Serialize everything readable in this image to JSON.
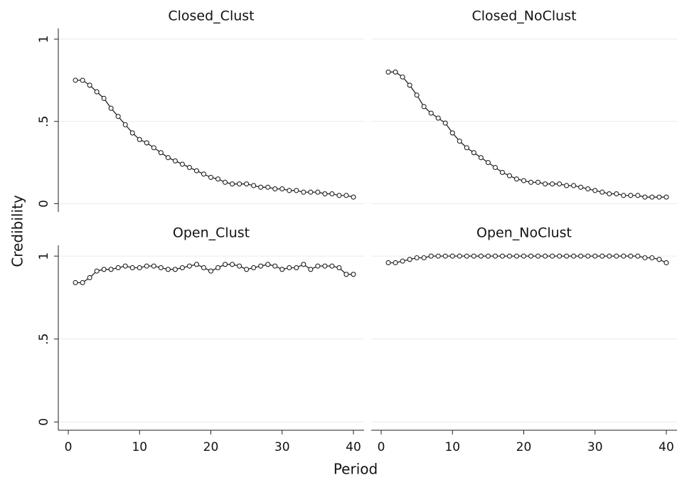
{
  "shared_axes": {
    "y_label": "Credibility",
    "x_label": "Period",
    "xlim": [
      -1.4,
      41.5
    ],
    "xticks": [
      0,
      10,
      20,
      30,
      40
    ],
    "ylim": [
      -0.05,
      1.065
    ],
    "yticks": [
      0,
      {
        "value": 0.5,
        "label": ".5"
      },
      1
    ]
  },
  "chart_data": [
    {
      "type": "line",
      "title": "Closed_Clust",
      "x": [
        1,
        2,
        3,
        4,
        5,
        6,
        7,
        8,
        9,
        10,
        11,
        12,
        13,
        14,
        15,
        16,
        17,
        18,
        19,
        20,
        21,
        22,
        23,
        24,
        25,
        26,
        27,
        28,
        29,
        30,
        31,
        32,
        33,
        34,
        35,
        36,
        37,
        38,
        39,
        40
      ],
      "values": [
        0.75,
        0.75,
        0.72,
        0.68,
        0.64,
        0.58,
        0.53,
        0.48,
        0.43,
        0.39,
        0.37,
        0.34,
        0.31,
        0.28,
        0.26,
        0.24,
        0.22,
        0.2,
        0.18,
        0.16,
        0.15,
        0.13,
        0.12,
        0.12,
        0.12,
        0.11,
        0.1,
        0.1,
        0.09,
        0.09,
        0.08,
        0.08,
        0.07,
        0.07,
        0.07,
        0.06,
        0.06,
        0.05,
        0.05,
        0.04
      ]
    },
    {
      "type": "line",
      "title": "Closed_NoClust",
      "x": [
        1,
        2,
        3,
        4,
        5,
        6,
        7,
        8,
        9,
        10,
        11,
        12,
        13,
        14,
        15,
        16,
        17,
        18,
        19,
        20,
        21,
        22,
        23,
        24,
        25,
        26,
        27,
        28,
        29,
        30,
        31,
        32,
        33,
        34,
        35,
        36,
        37,
        38,
        39,
        40
      ],
      "values": [
        0.8,
        0.8,
        0.77,
        0.72,
        0.66,
        0.59,
        0.55,
        0.52,
        0.49,
        0.43,
        0.38,
        0.34,
        0.31,
        0.28,
        0.25,
        0.22,
        0.19,
        0.17,
        0.15,
        0.14,
        0.13,
        0.13,
        0.12,
        0.12,
        0.12,
        0.11,
        0.11,
        0.1,
        0.09,
        0.08,
        0.07,
        0.06,
        0.06,
        0.05,
        0.05,
        0.05,
        0.04,
        0.04,
        0.04,
        0.04
      ]
    },
    {
      "type": "line",
      "title": "Open_Clust",
      "x": [
        1,
        2,
        3,
        4,
        5,
        6,
        7,
        8,
        9,
        10,
        11,
        12,
        13,
        14,
        15,
        16,
        17,
        18,
        19,
        20,
        21,
        22,
        23,
        24,
        25,
        26,
        27,
        28,
        29,
        30,
        31,
        32,
        33,
        34,
        35,
        36,
        37,
        38,
        39,
        40
      ],
      "values": [
        0.84,
        0.84,
        0.87,
        0.91,
        0.92,
        0.92,
        0.93,
        0.94,
        0.93,
        0.93,
        0.94,
        0.94,
        0.93,
        0.92,
        0.92,
        0.93,
        0.94,
        0.95,
        0.93,
        0.91,
        0.93,
        0.95,
        0.95,
        0.94,
        0.92,
        0.93,
        0.94,
        0.95,
        0.94,
        0.92,
        0.93,
        0.93,
        0.95,
        0.92,
        0.94,
        0.94,
        0.94,
        0.93,
        0.89,
        0.89
      ]
    },
    {
      "type": "line",
      "title": "Open_NoClust",
      "x": [
        1,
        2,
        3,
        4,
        5,
        6,
        7,
        8,
        9,
        10,
        11,
        12,
        13,
        14,
        15,
        16,
        17,
        18,
        19,
        20,
        21,
        22,
        23,
        24,
        25,
        26,
        27,
        28,
        29,
        30,
        31,
        32,
        33,
        34,
        35,
        36,
        37,
        38,
        39,
        40
      ],
      "values": [
        0.96,
        0.96,
        0.97,
        0.98,
        0.99,
        0.99,
        1,
        1,
        1,
        1,
        1,
        1,
        1,
        1,
        1,
        1,
        1,
        1,
        1,
        1,
        1,
        1,
        1,
        1,
        1,
        1,
        1,
        1,
        1,
        1,
        1,
        1,
        1,
        1,
        1,
        1,
        0.99,
        0.99,
        0.98,
        0.96
      ]
    }
  ]
}
